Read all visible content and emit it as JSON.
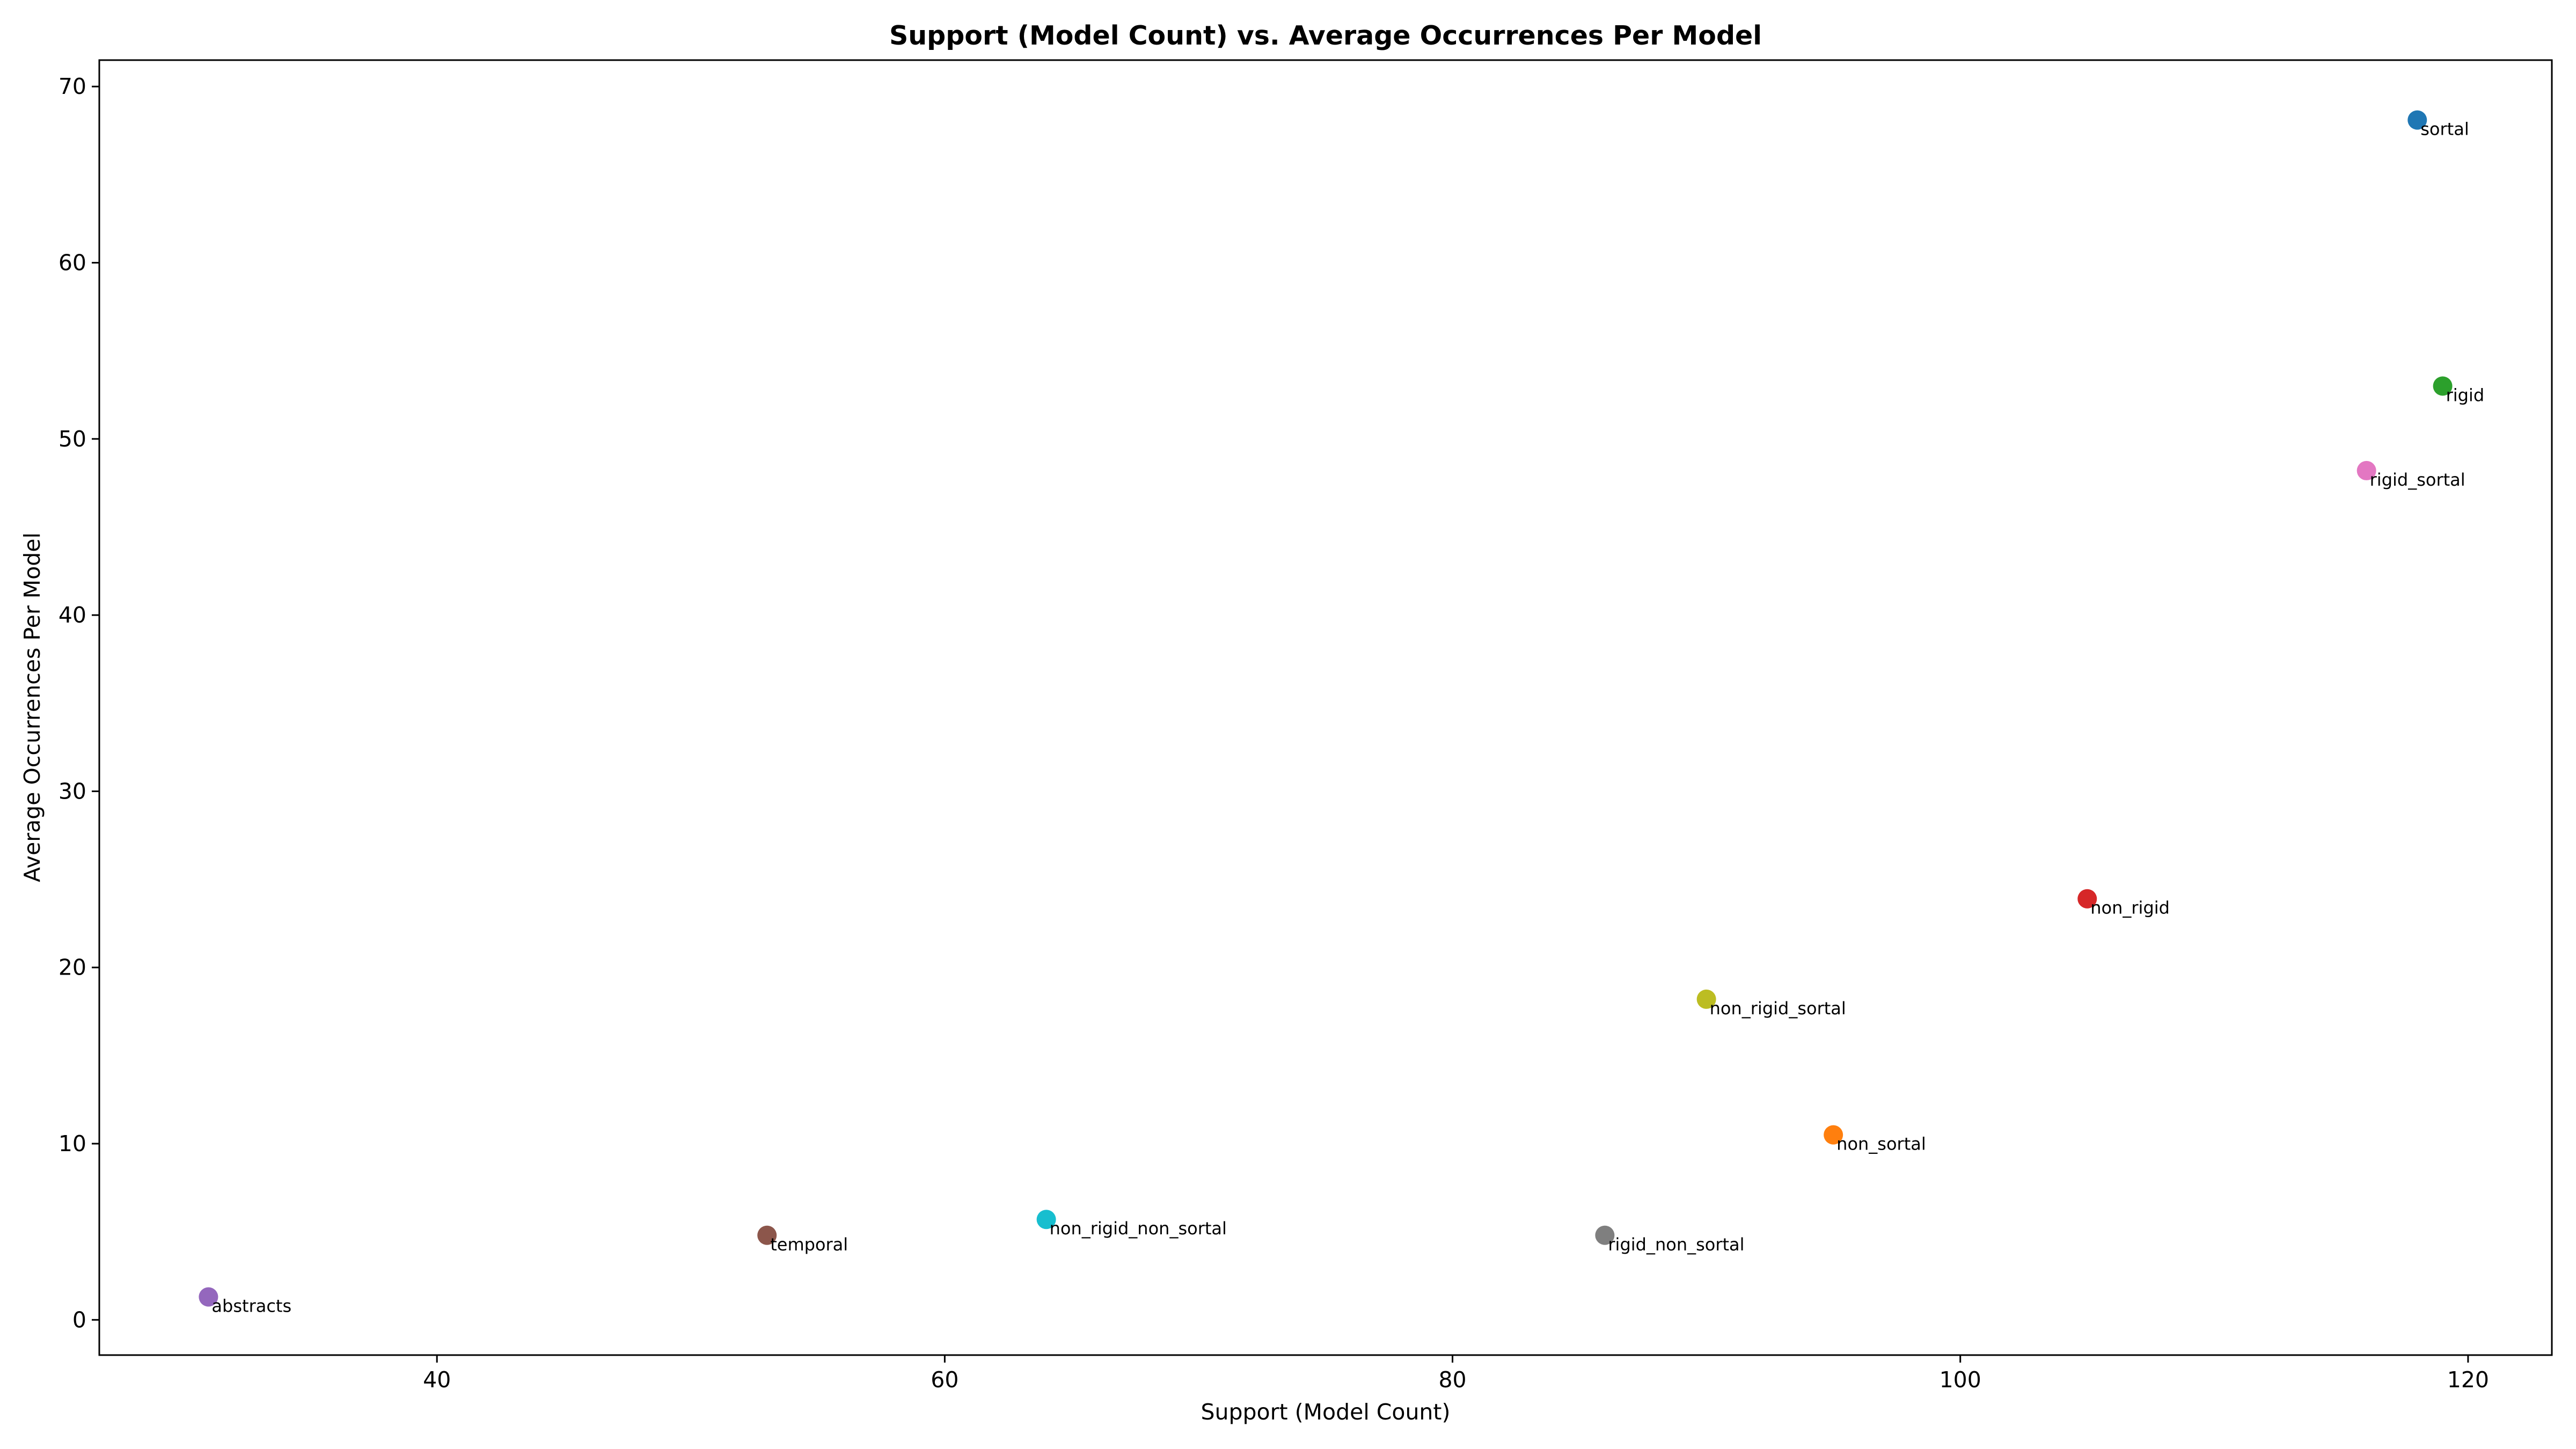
{
  "chart_data": {
    "type": "scatter",
    "title": "Support (Model Count) vs. Average Occurrences Per Model",
    "xlabel": "Support (Model Count)",
    "ylabel": "Average Occurrences Per Model",
    "xlim": [
      26.7,
      123.3
    ],
    "ylim": [
      -2.0,
      71.5
    ],
    "xticks": [
      40,
      60,
      80,
      100,
      120
    ],
    "yticks": [
      0,
      10,
      20,
      30,
      40,
      50,
      60,
      70
    ],
    "grid": false,
    "points": [
      {
        "label": "sortal",
        "x": 118,
        "y": 68.1,
        "color": "#1f77b4"
      },
      {
        "label": "non_sortal",
        "x": 95,
        "y": 10.5,
        "color": "#ff7f0e"
      },
      {
        "label": "rigid",
        "x": 119,
        "y": 53.0,
        "color": "#2ca02c"
      },
      {
        "label": "non_rigid",
        "x": 105,
        "y": 23.9,
        "color": "#d62728"
      },
      {
        "label": "abstracts",
        "x": 31,
        "y": 1.3,
        "color": "#9467bd"
      },
      {
        "label": "temporal",
        "x": 53,
        "y": 4.8,
        "color": "#8c564b"
      },
      {
        "label": "rigid_sortal",
        "x": 116,
        "y": 48.2,
        "color": "#e377c2"
      },
      {
        "label": "rigid_non_sortal",
        "x": 86,
        "y": 4.8,
        "color": "#7f7f7f"
      },
      {
        "label": "non_rigid_sortal",
        "x": 90,
        "y": 18.2,
        "color": "#bcbd22"
      },
      {
        "label": "non_rigid_non_sortal",
        "x": 64,
        "y": 5.7,
        "color": "#17becf"
      }
    ]
  }
}
